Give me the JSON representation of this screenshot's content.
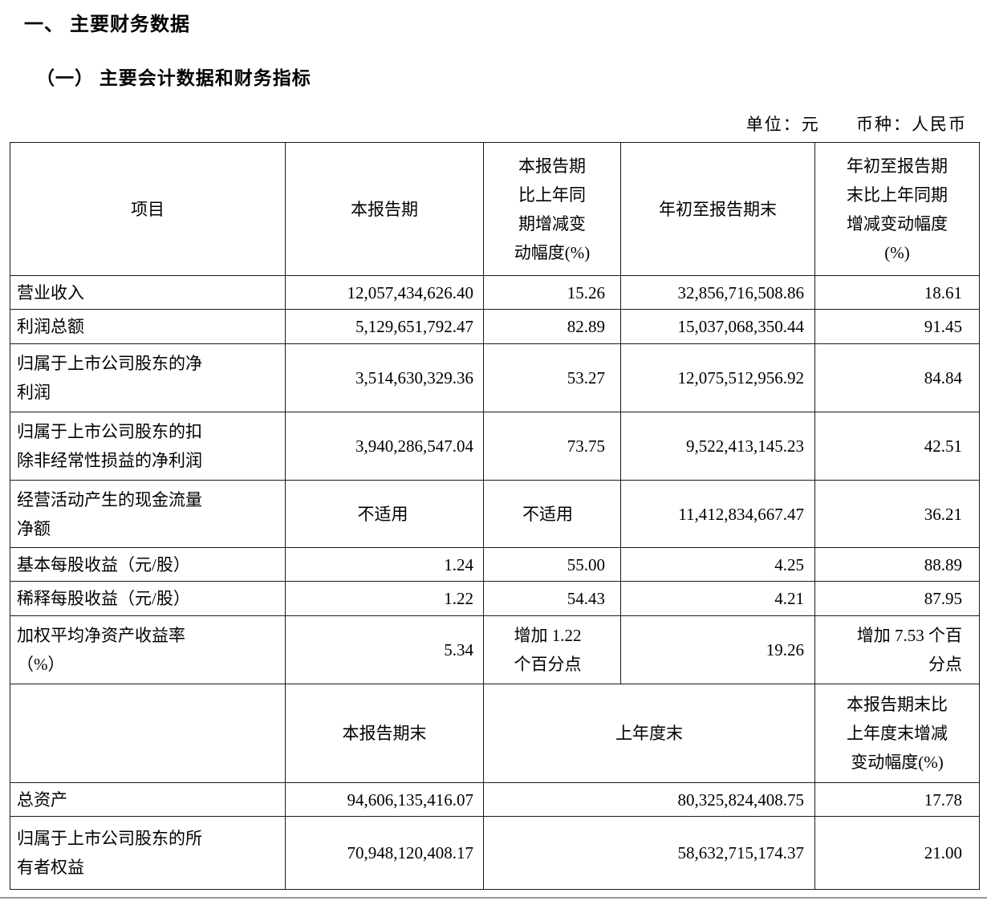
{
  "page": {
    "title": "一、 主要财务数据",
    "subtitle": "（一）  主要会计数据和财务指标",
    "unit_note": "单位：元",
    "currency_note": "币种：人民币"
  },
  "table": {
    "header1": {
      "item": "项目",
      "current_period": "本报告期",
      "current_period_change": "本报告期\n比上年同\n期增减变\n动幅度(%)",
      "ytd": "年初至报告期末",
      "ytd_change": "年初至报告期\n末比上年同期\n增减变动幅度\n(%)"
    },
    "rows": [
      {
        "label": "营业收入",
        "current": "12,057,434,626.40",
        "change": "15.26",
        "ytd": "32,856,716,508.86",
        "ytd_change": "18.61"
      },
      {
        "label": "利润总额",
        "current": "5,129,651,792.47",
        "change": "82.89",
        "ytd": "15,037,068,350.44",
        "ytd_change": "91.45"
      },
      {
        "label": "归属于上市公司股东的净\n利润",
        "current": "3,514,630,329.36",
        "change": "53.27",
        "ytd": "12,075,512,956.92",
        "ytd_change": "84.84"
      },
      {
        "label": "归属于上市公司股东的扣\n除非经常性损益的净利润",
        "current": "3,940,286,547.04",
        "change": "73.75",
        "ytd": "9,522,413,145.23",
        "ytd_change": "42.51"
      },
      {
        "label": "经营活动产生的现金流量\n净额",
        "current": "不适用",
        "current_align": "center",
        "change": "不适用",
        "change_align": "center",
        "ytd": "11,412,834,667.47",
        "ytd_change": "36.21"
      },
      {
        "label": "基本每股收益（元/股）",
        "current": "1.24",
        "change": "55.00",
        "ytd": "4.25",
        "ytd_change": "88.89"
      },
      {
        "label": "稀释每股收益（元/股）",
        "current": "1.22",
        "change": "54.43",
        "ytd": "4.21",
        "ytd_change": "87.95"
      },
      {
        "label": "加权平均净资产收益率\n（%）",
        "current": "5.34",
        "change": "增加 1.22\n个百分点",
        "change_align": "center",
        "ytd": "19.26",
        "ytd_change": "增加 7.53 个百\n分点"
      }
    ],
    "header2": {
      "item": "",
      "current_period_end": "本报告期末",
      "prior_year_end": "上年度末",
      "change": "本报告期末比\n上年度末增减\n变动幅度(%)"
    },
    "rows2": [
      {
        "label": "总资产",
        "current": "94,606,135,416.07",
        "prior": "80,325,824,408.75",
        "change": "17.78"
      },
      {
        "label": "归属于上市公司股东的所\n有者权益",
        "current": "70,948,120,408.17",
        "prior": "58,632,715,174.37",
        "change": "21.00"
      }
    ]
  }
}
